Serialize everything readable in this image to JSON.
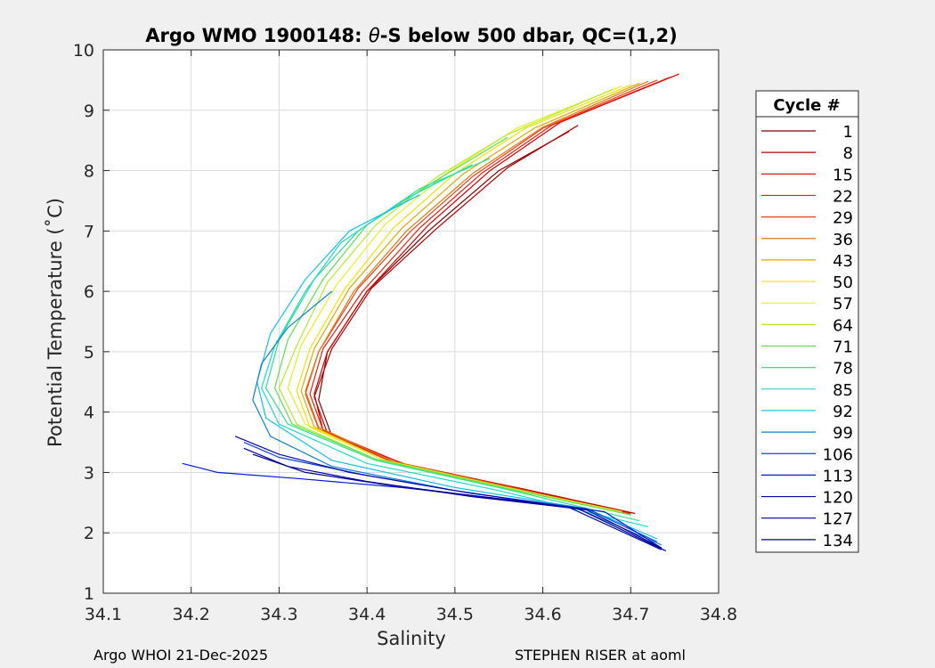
{
  "chart_data": {
    "type": "line",
    "title_prefix": "Argo WMO 1900148: ",
    "title_symbol": "θ",
    "title_suffix": "-S below 500 dbar,  QC=(1,2)",
    "xlabel": "Salinity",
    "ylabel": "Potential Temperature (˚C)",
    "xlim": [
      34.1,
      34.8
    ],
    "ylim": [
      1,
      10
    ],
    "xticks": [
      "34.1",
      "34.2",
      "34.3",
      "34.4",
      "34.5",
      "34.6",
      "34.7",
      "34.8"
    ],
    "yticks": [
      "1",
      "2",
      "3",
      "4",
      "5",
      "6",
      "7",
      "8",
      "9",
      "10"
    ],
    "grid": true,
    "legend_title": "Cycle #",
    "legend_position": "outside-right",
    "legend": [
      {
        "label": "1",
        "color": "#7f0000"
      },
      {
        "label": "8",
        "color": "#b00000"
      },
      {
        "label": "15",
        "color": "#d40000"
      },
      {
        "label": "22",
        "color": "#e62010"
      },
      {
        "label": "29",
        "color": "#e8401a"
      },
      {
        "label": "36",
        "color": "#e07a10"
      },
      {
        "label": "43",
        "color": "#e0a800"
      },
      {
        "label": "50",
        "color": "#f2e200"
      },
      {
        "label": "57",
        "color": "#e6f020"
      },
      {
        "label": "64",
        "color": "#b4ec30"
      },
      {
        "label": "71",
        "color": "#5fe04a"
      },
      {
        "label": "78",
        "color": "#2ee08c"
      },
      {
        "label": "85",
        "color": "#18dcc4"
      },
      {
        "label": "92",
        "color": "#10c0ec"
      },
      {
        "label": "99",
        "color": "#0a82d8"
      },
      {
        "label": "106",
        "color": "#0846d8"
      },
      {
        "label": "113",
        "color": "#0018e0"
      },
      {
        "label": "120",
        "color": "#0008b0"
      },
      {
        "label": "127",
        "color": "#0000a0"
      },
      {
        "label": "134",
        "color": "#00008c"
      }
    ],
    "series": [
      {
        "name": "1",
        "color": "#7f0000",
        "points": [
          [
            34.63,
            8.65
          ],
          [
            34.55,
            8.0
          ],
          [
            34.47,
            7.0
          ],
          [
            34.4,
            6.0
          ],
          [
            34.355,
            5.0
          ],
          [
            34.345,
            4.2
          ],
          [
            34.36,
            3.6
          ],
          [
            34.45,
            3.1
          ],
          [
            34.58,
            2.7
          ],
          [
            34.7,
            2.3
          ]
        ]
      },
      {
        "name": "8",
        "color": "#b00000",
        "points": [
          [
            34.64,
            8.75
          ],
          [
            34.56,
            8.05
          ],
          [
            34.48,
            7.05
          ],
          [
            34.405,
            6.05
          ],
          [
            34.36,
            5.05
          ],
          [
            34.34,
            4.25
          ],
          [
            34.355,
            3.65
          ],
          [
            34.44,
            3.12
          ],
          [
            34.58,
            2.72
          ],
          [
            34.705,
            2.32
          ]
        ]
      },
      {
        "name": "15",
        "color": "#d40000",
        "points": [
          [
            34.755,
            9.6
          ],
          [
            34.62,
            8.8
          ],
          [
            34.54,
            8.0
          ],
          [
            34.47,
            7.1
          ],
          [
            34.4,
            6.0
          ],
          [
            34.355,
            5.0
          ],
          [
            34.34,
            4.3
          ],
          [
            34.35,
            3.7
          ],
          [
            34.44,
            3.15
          ],
          [
            34.57,
            2.75
          ],
          [
            34.7,
            2.33
          ]
        ]
      },
      {
        "name": "22",
        "color": "#e62010",
        "points": [
          [
            34.745,
            9.55
          ],
          [
            34.61,
            8.75
          ],
          [
            34.53,
            7.95
          ],
          [
            34.46,
            7.05
          ],
          [
            34.395,
            6.0
          ],
          [
            34.35,
            5.05
          ],
          [
            34.335,
            4.3
          ],
          [
            34.35,
            3.7
          ],
          [
            34.44,
            3.15
          ],
          [
            34.57,
            2.74
          ],
          [
            34.7,
            2.31
          ]
        ]
      },
      {
        "name": "29",
        "color": "#e8401a",
        "points": [
          [
            34.73,
            9.5
          ],
          [
            34.6,
            8.7
          ],
          [
            34.52,
            7.9
          ],
          [
            34.45,
            7.0
          ],
          [
            34.39,
            6.05
          ],
          [
            34.345,
            5.0
          ],
          [
            34.33,
            4.3
          ],
          [
            34.345,
            3.72
          ],
          [
            34.43,
            3.16
          ],
          [
            34.56,
            2.75
          ],
          [
            34.695,
            2.33
          ]
        ]
      },
      {
        "name": "36",
        "color": "#e07a10",
        "points": [
          [
            34.72,
            9.48
          ],
          [
            34.6,
            8.72
          ],
          [
            34.52,
            7.95
          ],
          [
            34.445,
            7.0
          ],
          [
            34.385,
            6.0
          ],
          [
            34.345,
            5.0
          ],
          [
            34.33,
            4.35
          ],
          [
            34.345,
            3.75
          ],
          [
            34.43,
            3.18
          ],
          [
            34.56,
            2.76
          ],
          [
            34.69,
            2.33
          ]
        ]
      },
      {
        "name": "43",
        "color": "#e0a800",
        "points": [
          [
            34.71,
            9.45
          ],
          [
            34.59,
            8.7
          ],
          [
            34.51,
            7.95
          ],
          [
            34.44,
            7.05
          ],
          [
            34.38,
            6.05
          ],
          [
            34.34,
            5.05
          ],
          [
            34.325,
            4.35
          ],
          [
            34.34,
            3.75
          ],
          [
            34.42,
            3.2
          ],
          [
            34.55,
            2.78
          ],
          [
            34.69,
            2.35
          ]
        ]
      },
      {
        "name": "50",
        "color": "#f2e200",
        "points": [
          [
            34.7,
            9.42
          ],
          [
            34.58,
            8.7
          ],
          [
            34.5,
            7.95
          ],
          [
            34.43,
            7.05
          ],
          [
            34.375,
            6.05
          ],
          [
            34.335,
            5.05
          ],
          [
            34.32,
            4.35
          ],
          [
            34.335,
            3.75
          ],
          [
            34.42,
            3.2
          ],
          [
            34.55,
            2.78
          ],
          [
            34.69,
            2.35
          ]
        ]
      },
      {
        "name": "57",
        "color": "#e6f020",
        "points": [
          [
            34.69,
            9.4
          ],
          [
            34.57,
            8.7
          ],
          [
            34.49,
            7.95
          ],
          [
            34.42,
            7.1
          ],
          [
            34.365,
            6.1
          ],
          [
            34.325,
            5.1
          ],
          [
            34.31,
            4.4
          ],
          [
            34.33,
            3.8
          ],
          [
            34.42,
            3.2
          ],
          [
            34.55,
            2.78
          ],
          [
            34.69,
            2.35
          ]
        ]
      },
      {
        "name": "64",
        "color": "#b4ec30",
        "points": [
          [
            34.68,
            9.35
          ],
          [
            34.56,
            8.6
          ],
          [
            34.48,
            7.9
          ],
          [
            34.41,
            7.1
          ],
          [
            34.355,
            6.15
          ],
          [
            34.32,
            5.1
          ],
          [
            34.3,
            4.4
          ],
          [
            34.32,
            3.8
          ],
          [
            34.41,
            3.22
          ],
          [
            34.55,
            2.78
          ],
          [
            34.69,
            2.34
          ]
        ]
      },
      {
        "name": "71",
        "color": "#5fe04a",
        "points": [
          [
            34.56,
            8.55
          ],
          [
            34.48,
            7.85
          ],
          [
            34.4,
            7.1
          ],
          [
            34.35,
            6.2
          ],
          [
            34.31,
            5.2
          ],
          [
            34.295,
            4.4
          ],
          [
            34.315,
            3.8
          ],
          [
            34.41,
            3.22
          ],
          [
            34.55,
            2.76
          ],
          [
            34.7,
            2.3
          ]
        ]
      },
      {
        "name": "78",
        "color": "#2ee08c",
        "points": [
          [
            34.54,
            8.2
          ],
          [
            34.46,
            7.7
          ],
          [
            34.39,
            7.0
          ],
          [
            34.34,
            6.2
          ],
          [
            34.3,
            5.2
          ],
          [
            34.285,
            4.4
          ],
          [
            34.31,
            3.8
          ],
          [
            34.41,
            3.2
          ],
          [
            34.55,
            2.75
          ],
          [
            34.71,
            2.2
          ]
        ]
      },
      {
        "name": "85",
        "color": "#18dcc4",
        "points": [
          [
            34.52,
            8.1
          ],
          [
            34.44,
            7.5
          ],
          [
            34.37,
            6.8
          ],
          [
            34.33,
            6.0
          ],
          [
            34.295,
            5.1
          ],
          [
            34.28,
            4.4
          ],
          [
            34.3,
            3.8
          ],
          [
            34.4,
            3.15
          ],
          [
            34.55,
            2.7
          ],
          [
            34.72,
            2.1
          ]
        ]
      },
      {
        "name": "92",
        "color": "#10c0ec",
        "points": [
          [
            34.46,
            7.6
          ],
          [
            34.38,
            7.0
          ],
          [
            34.33,
            6.2
          ],
          [
            34.29,
            5.3
          ],
          [
            34.275,
            4.5
          ],
          [
            34.285,
            3.9
          ],
          [
            34.36,
            3.2
          ],
          [
            34.5,
            2.75
          ],
          [
            34.65,
            2.4
          ],
          [
            34.73,
            1.9
          ]
        ]
      },
      {
        "name": "99",
        "color": "#0a82d8",
        "points": [
          [
            34.36,
            6.0
          ],
          [
            34.31,
            5.4
          ],
          [
            34.28,
            4.8
          ],
          [
            34.27,
            4.2
          ],
          [
            34.29,
            3.6
          ],
          [
            34.36,
            3.1
          ],
          [
            34.5,
            2.7
          ],
          [
            34.64,
            2.4
          ],
          [
            34.735,
            1.8
          ]
        ]
      },
      {
        "name": "106",
        "color": "#0846d8",
        "points": [
          [
            34.26,
            3.5
          ],
          [
            34.3,
            3.25
          ],
          [
            34.4,
            2.95
          ],
          [
            34.52,
            2.65
          ],
          [
            34.65,
            2.4
          ],
          [
            34.73,
            1.85
          ]
        ]
      },
      {
        "name": "113",
        "color": "#0018e0",
        "points": [
          [
            34.19,
            3.15
          ],
          [
            34.23,
            3.0
          ],
          [
            34.32,
            2.9
          ],
          [
            34.44,
            2.75
          ],
          [
            34.56,
            2.55
          ],
          [
            34.67,
            2.35
          ],
          [
            34.735,
            1.75
          ]
        ]
      },
      {
        "name": "120",
        "color": "#0008b0",
        "points": [
          [
            34.25,
            3.6
          ],
          [
            34.3,
            3.3
          ],
          [
            34.38,
            3.0
          ],
          [
            34.5,
            2.7
          ],
          [
            34.63,
            2.42
          ],
          [
            34.735,
            1.72
          ]
        ]
      },
      {
        "name": "127",
        "color": "#0000a0",
        "points": [
          [
            34.26,
            3.4
          ],
          [
            34.31,
            3.1
          ],
          [
            34.4,
            2.85
          ],
          [
            34.52,
            2.6
          ],
          [
            34.64,
            2.4
          ],
          [
            34.74,
            1.7
          ]
        ]
      },
      {
        "name": "134",
        "color": "#00008c",
        "points": [
          [
            34.27,
            3.3
          ],
          [
            34.33,
            3.0
          ],
          [
            34.42,
            2.8
          ],
          [
            34.54,
            2.58
          ],
          [
            34.65,
            2.38
          ],
          [
            34.735,
            1.75
          ]
        ]
      }
    ]
  },
  "footer": {
    "left": "Argo WHOI 21-Dec-2025",
    "right": "STEPHEN RISER at aoml"
  }
}
